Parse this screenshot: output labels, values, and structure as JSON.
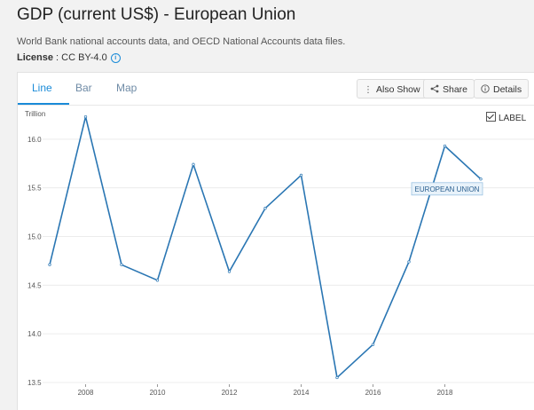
{
  "page": {
    "title": "GDP (current US$) - European Union",
    "source": "World Bank national accounts data, and OECD National Accounts data files.",
    "license_label": "License",
    "license_value": " : CC BY-4.0"
  },
  "tabs": [
    {
      "label": "Line",
      "active": true
    },
    {
      "label": "Bar",
      "active": false
    },
    {
      "label": "Map",
      "active": false
    }
  ],
  "toolbar": {
    "also_show": "Also Show",
    "share": "Share",
    "details": "Details"
  },
  "label_toggle": {
    "label": "LABEL",
    "checked": true
  },
  "colors": {
    "line": "#2a76b3",
    "accent": "#1a8bd8"
  },
  "chart_data": {
    "type": "line",
    "ylabel": "Trillion",
    "ylim": [
      13.5,
      16.5
    ],
    "yticks": [
      "13.5",
      "14.0",
      "14.5",
      "15.0",
      "15.5",
      "16.0"
    ],
    "xlim": [
      2007,
      2019
    ],
    "xticks": [
      "2008",
      "2010",
      "2012",
      "2014",
      "2016",
      "2018"
    ],
    "grid": true,
    "series": [
      {
        "name": "EUROPEAN UNION",
        "x": [
          2007,
          2008,
          2009,
          2010,
          2011,
          2012,
          2013,
          2014,
          2015,
          2016,
          2017,
          2018,
          2019
        ],
        "values": [
          14.71,
          16.23,
          14.71,
          14.55,
          15.74,
          14.64,
          15.29,
          15.63,
          13.55,
          13.89,
          14.74,
          15.93,
          15.59
        ]
      }
    ]
  }
}
